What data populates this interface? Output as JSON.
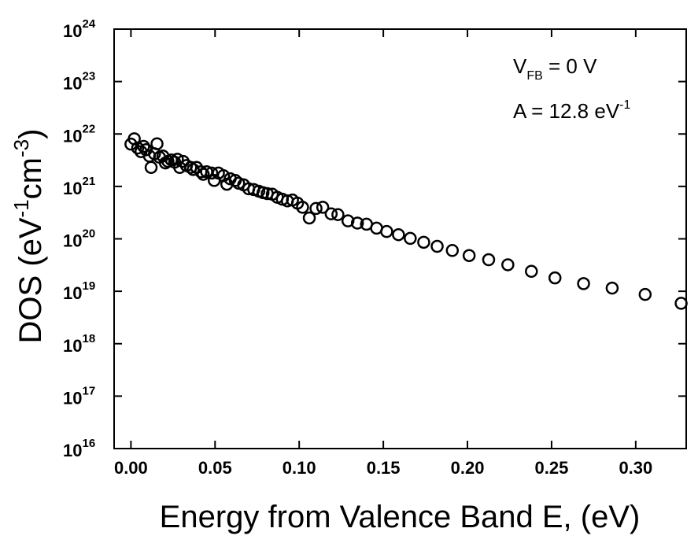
{
  "chart_data": {
    "type": "scatter",
    "x_label": "Energy from Valence Band E, (eV)",
    "y_label": [
      "DOS (eV",
      "-1",
      "cm",
      "-3",
      ")"
    ],
    "annotations": [
      [
        "V",
        "FB",
        " = 0 V"
      ],
      [
        "A = 12.8 eV",
        "-1"
      ]
    ],
    "x": [
      0,
      0.002,
      0.004,
      0.006,
      0.0075,
      0.009,
      0.011,
      0.012,
      0.014,
      0.0155,
      0.017,
      0.019,
      0.0205,
      0.022,
      0.024,
      0.026,
      0.0276,
      0.029,
      0.031,
      0.033,
      0.0355,
      0.037,
      0.039,
      0.0416,
      0.043,
      0.045,
      0.048,
      0.0495,
      0.052,
      0.055,
      0.057,
      0.059,
      0.062,
      0.064,
      0.067,
      0.07,
      0.073,
      0.076,
      0.0785,
      0.081,
      0.084,
      0.087,
      0.09,
      0.093,
      0.096,
      0.099,
      0.102,
      0.106,
      0.11,
      0.114,
      0.119,
      0.123,
      0.129,
      0.1346,
      0.14,
      0.146,
      0.152,
      0.159,
      0.166,
      0.174,
      0.182,
      0.191,
      0.201,
      0.2126,
      0.224,
      0.238,
      0.252,
      0.269,
      0.286,
      0.3056,
      0.327
    ],
    "values": [
      6.4e+21,
      8.1e+21,
      5.4e+21,
      4.6e+21,
      5.8e+21,
      5e+21,
      3.8e+21,
      2.3e+21,
      4.2e+21,
      6.5e+21,
      3.6e+21,
      3.8e+21,
      2.8e+21,
      3e+21,
      3.2e+21,
      2.9e+21,
      3.3e+21,
      2.3e+21,
      3e+21,
      2.5e+21,
      2.3e+21,
      2.1e+21,
      2.3e+21,
      1.9e+21,
      1.7e+21,
      1.9e+21,
      1.8e+21,
      1.3e+21,
      1.8e+21,
      1.6e+21,
      1.1e+21,
      1.4e+21,
      1.3e+21,
      1.15e+21,
      1.07e+21,
      9e+20,
      8.7e+20,
      8.1e+20,
      7.6e+20,
      7.3e+20,
      7.1e+20,
      6.2e+20,
      5.7e+20,
      5.3e+20,
      5.5e+20,
      4.8e+20,
      4e+20,
      2.5e+20,
      3.8e+20,
      4e+20,
      3e+20,
      2.9e+20,
      2.2e+20,
      2e+20,
      1.9e+20,
      1.6e+20,
      1.38e+20,
      1.2e+20,
      1.02e+20,
      8.6e+19,
      7.2e+19,
      6e+19,
      4.8e+19,
      4e+19,
      3.2e+19,
      2.4e+19,
      1.8e+19,
      1.4e+19,
      1.15e+19,
      8.7e+18,
      5.9e+18
    ],
    "color": "#000000",
    "xlim": [
      -0.01,
      0.33
    ],
    "xticks": [
      {
        "value": 0,
        "label": "0.00"
      },
      0.05,
      {
        "value": 0.1,
        "label": "0.10"
      },
      0.15,
      {
        "value": 0.2,
        "label": "0.20"
      },
      0.25,
      {
        "value": 0.3,
        "label": "0.30"
      }
    ],
    "ylim": [
      1e+16,
      1e+24
    ],
    "y_log": true,
    "yticks": [
      {
        "value": 1e+16,
        "label": "10",
        "exponent": "16"
      },
      {
        "value": 1e+17,
        "label": "10",
        "exponent": "17"
      },
      {
        "value": 1e+18,
        "label": "10",
        "exponent": "18"
      },
      {
        "value": 1e+19,
        "label": "10",
        "exponent": "19"
      },
      {
        "value": 1e+20,
        "label": "10",
        "exponent": "20"
      },
      {
        "value": 1e+21,
        "label": "10",
        "exponent": "21"
      },
      {
        "value": 1e+22,
        "label": "10",
        "exponent": "22"
      },
      {
        "value": 1e+23,
        "label": "10",
        "exponent": "23"
      },
      {
        "value": 1e+24,
        "label": "10",
        "exponent": "24"
      }
    ]
  }
}
